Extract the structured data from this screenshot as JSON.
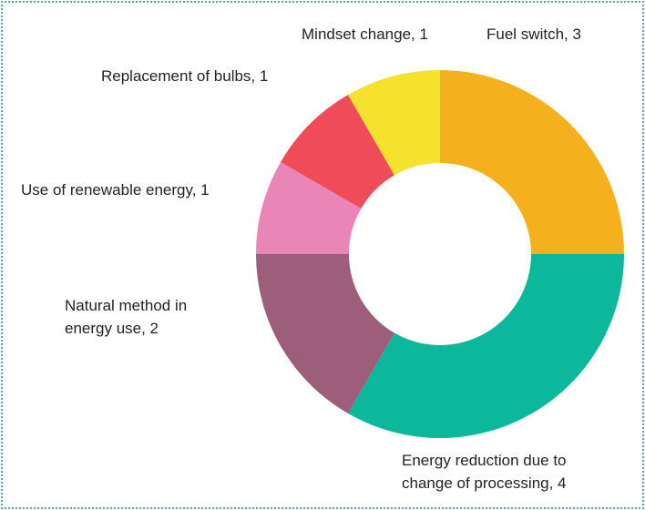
{
  "chart_data": {
    "type": "donut",
    "labels": [
      "Fuel switch, 3",
      "Energy reduction due to change of processing, 4",
      "Natural method in energy use, 2",
      "Use of renewable energy, 1",
      "Replacement of bulbs, 1",
      "Mindset change, 1"
    ],
    "values": [
      3,
      4,
      2,
      1,
      1,
      1
    ],
    "colors": [
      "#f5b01e",
      "#0bb89c",
      "#9c5e78",
      "#e986b7",
      "#f04b58",
      "#f5e22d"
    ]
  }
}
